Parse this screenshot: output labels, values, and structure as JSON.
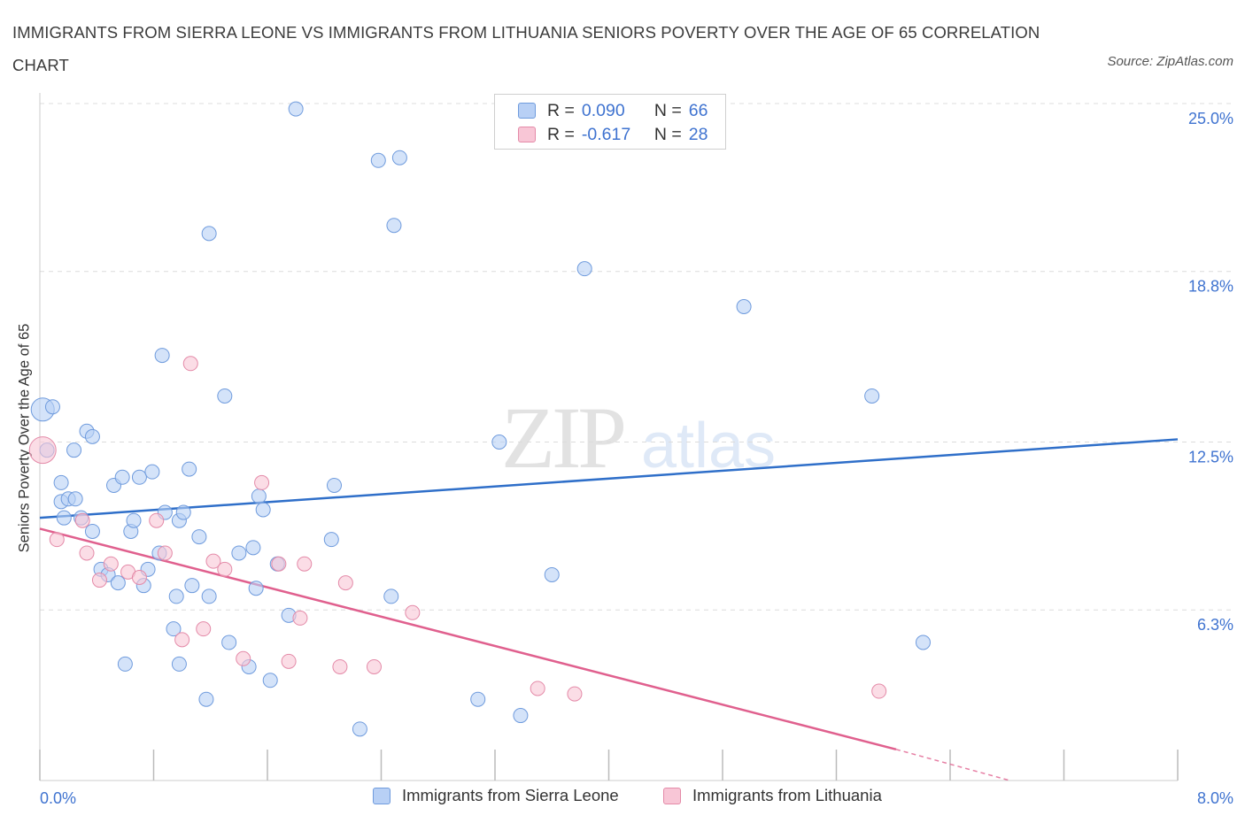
{
  "title": "IMMIGRANTS FROM SIERRA LEONE VS IMMIGRANTS FROM LITHUANIA SENIORS POVERTY OVER THE AGE OF 65 CORRELATION CHART",
  "source": "Source: ZipAtlas.com",
  "watermark": {
    "zip": "ZIP",
    "atlas": "atlas"
  },
  "legend": {
    "r_label": "R =",
    "n_label": "N =",
    "series": [
      {
        "r": "0.090",
        "n": "66"
      },
      {
        "r": "-0.617",
        "n": "28"
      }
    ]
  },
  "colors": {
    "blue_fill": "#b8d0f5",
    "blue_stroke": "#6f9bdd",
    "blue_line": "#2f6fc9",
    "pink_fill": "#f8c6d6",
    "pink_stroke": "#e48aa8",
    "pink_line": "#e0608e",
    "tick_label": "#3f73d0",
    "grid": "#dcdcdc"
  },
  "chart_data": {
    "type": "scatter",
    "title": "IMMIGRANTS FROM SIERRA LEONE VS IMMIGRANTS FROM LITHUANIA SENIORS POVERTY OVER THE AGE OF 65 CORRELATION CHART",
    "xlabel": "",
    "ylabel": "Seniors Poverty Over the Age of 65",
    "xlim": [
      0,
      8
    ],
    "ylim": [
      0,
      25
    ],
    "x_tick_labels": [
      "0.0%",
      "8.0%"
    ],
    "y_ticks": [
      6.3,
      12.5,
      18.8,
      25.0
    ],
    "y_tick_labels": [
      "6.3%",
      "12.5%",
      "18.8%",
      "25.0%"
    ],
    "grid": "horizontal dashed",
    "series": [
      {
        "name": "Immigrants from Sierra Leone",
        "r": 0.09,
        "n": 66,
        "trend": {
          "x": [
            0,
            8
          ],
          "y": [
            9.7,
            12.6
          ]
        },
        "points": [
          [
            0.02,
            13.7
          ],
          [
            0.05,
            12.2
          ],
          [
            0.09,
            13.8
          ],
          [
            0.15,
            10.3
          ],
          [
            0.15,
            11.0
          ],
          [
            0.24,
            12.2
          ],
          [
            0.17,
            9.7
          ],
          [
            0.2,
            10.4
          ],
          [
            0.25,
            10.4
          ],
          [
            0.29,
            9.7
          ],
          [
            0.33,
            12.9
          ],
          [
            0.37,
            12.7
          ],
          [
            0.37,
            9.2
          ],
          [
            0.43,
            7.8
          ],
          [
            0.48,
            7.6
          ],
          [
            0.52,
            10.9
          ],
          [
            0.55,
            7.3
          ],
          [
            0.58,
            11.2
          ],
          [
            0.64,
            9.2
          ],
          [
            0.66,
            9.6
          ],
          [
            0.7,
            11.2
          ],
          [
            0.73,
            7.2
          ],
          [
            0.76,
            7.8
          ],
          [
            0.79,
            11.4
          ],
          [
            0.84,
            8.4
          ],
          [
            0.86,
            15.7
          ],
          [
            0.88,
            9.9
          ],
          [
            0.94,
            5.6
          ],
          [
            0.96,
            6.8
          ],
          [
            0.98,
            9.6
          ],
          [
            1.01,
            9.9
          ],
          [
            1.05,
            11.5
          ],
          [
            1.07,
            7.2
          ],
          [
            1.12,
            9.0
          ],
          [
            1.17,
            3.0
          ],
          [
            1.19,
            20.2
          ],
          [
            1.19,
            6.8
          ],
          [
            1.3,
            14.2
          ],
          [
            1.33,
            5.1
          ],
          [
            1.4,
            8.4
          ],
          [
            1.47,
            4.2
          ],
          [
            1.5,
            8.6
          ],
          [
            1.52,
            7.1
          ],
          [
            1.54,
            10.5
          ],
          [
            1.57,
            10.0
          ],
          [
            1.62,
            3.7
          ],
          [
            1.67,
            8.0
          ],
          [
            1.75,
            6.1
          ],
          [
            1.8,
            24.8
          ],
          [
            2.05,
            8.9
          ],
          [
            2.07,
            10.9
          ],
          [
            2.25,
            1.9
          ],
          [
            2.38,
            22.9
          ],
          [
            2.47,
            6.8
          ],
          [
            2.49,
            20.5
          ],
          [
            2.53,
            23.0
          ],
          [
            3.08,
            3.0
          ],
          [
            3.23,
            12.5
          ],
          [
            3.38,
            2.4
          ],
          [
            3.6,
            7.6
          ],
          [
            3.83,
            18.9
          ],
          [
            4.95,
            17.5
          ],
          [
            5.85,
            14.2
          ],
          [
            6.21,
            5.1
          ],
          [
            0.98,
            4.3
          ],
          [
            0.6,
            4.3
          ]
        ]
      },
      {
        "name": "Immigrants from Lithuania",
        "r": -0.617,
        "n": 28,
        "trend": {
          "x": [
            0,
            6.02
          ],
          "y": [
            9.3,
            1.15
          ]
        },
        "trend_dashed": {
          "x": [
            6.02,
            6.82
          ],
          "y": [
            1.15,
            0.0
          ]
        },
        "points": [
          [
            0.02,
            12.2
          ],
          [
            0.12,
            8.9
          ],
          [
            0.3,
            9.6
          ],
          [
            0.33,
            8.4
          ],
          [
            0.42,
            7.4
          ],
          [
            0.5,
            8.0
          ],
          [
            0.62,
            7.7
          ],
          [
            0.7,
            7.5
          ],
          [
            0.82,
            9.6
          ],
          [
            0.88,
            8.4
          ],
          [
            1.0,
            5.2
          ],
          [
            1.06,
            15.4
          ],
          [
            1.15,
            5.6
          ],
          [
            1.22,
            8.1
          ],
          [
            1.3,
            7.8
          ],
          [
            1.43,
            4.5
          ],
          [
            1.56,
            11.0
          ],
          [
            1.68,
            8.0
          ],
          [
            1.75,
            4.4
          ],
          [
            1.83,
            6.0
          ],
          [
            1.86,
            8.0
          ],
          [
            2.11,
            4.2
          ],
          [
            2.15,
            7.3
          ],
          [
            2.35,
            4.2
          ],
          [
            2.62,
            6.2
          ],
          [
            3.5,
            3.4
          ],
          [
            3.76,
            3.2
          ],
          [
            5.9,
            3.3
          ]
        ]
      }
    ]
  },
  "bottom_legend": {
    "items": [
      "Immigrants from Sierra Leone",
      "Immigrants from Lithuania"
    ]
  }
}
